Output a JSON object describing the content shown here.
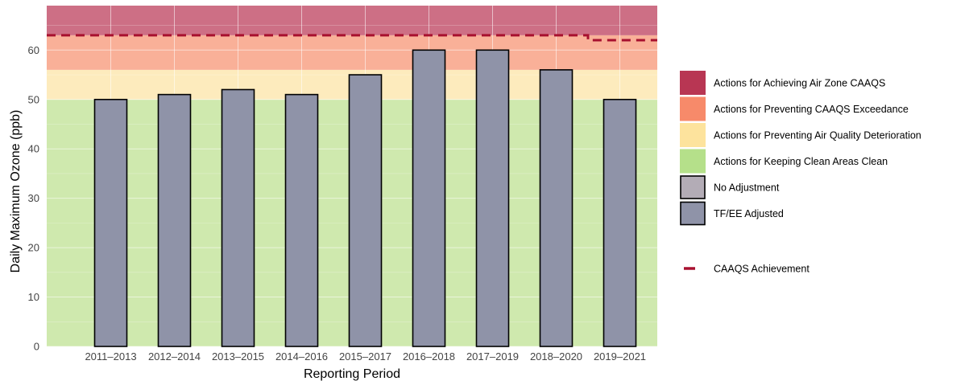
{
  "chart_data": {
    "type": "bar",
    "title": "",
    "xlabel": "Reporting Period",
    "ylabel": "Daily Maximum Ozone (ppb)",
    "ylim": [
      0,
      69
    ],
    "yticks": [
      0,
      10,
      20,
      30,
      40,
      50,
      60
    ],
    "grid": true,
    "categories": [
      "2011–2013",
      "2012–2014",
      "2013–2015",
      "2014–2016",
      "2015–2017",
      "2016–2018",
      "2017–2019",
      "2018–2020",
      "2019–2021"
    ],
    "series": [
      {
        "name": "TF/EE Adjusted",
        "color": "#8f93a8",
        "values": [
          50,
          51,
          52,
          51,
          55,
          60,
          60,
          56,
          50
        ]
      }
    ],
    "bands": [
      {
        "name": "Actions for Keeping Clean Areas Clean",
        "from": 0,
        "to": 50,
        "color": "#cfe9ae",
        "legend_color": "#b5e08a"
      },
      {
        "name": "Actions for Preventing Air Quality Deterioration",
        "from": 50,
        "to": 56,
        "color": "#fdebbd",
        "legend_color": "#fde39d"
      },
      {
        "name": "Actions for Preventing CAAQS Exceedance",
        "from": 56,
        "to": 63,
        "color": "#f9b098",
        "legend_color": "#f78a6a"
      },
      {
        "name": "Actions for Achieving Air Zone CAAQS",
        "from": 63,
        "to": 69,
        "color": "#cd6f85",
        "legend_color": "#b83653"
      }
    ],
    "achievement_line": {
      "name": "CAAQS Achievement",
      "color": "#a8102f",
      "segments": [
        {
          "from_category_index": 0,
          "to_category_index": 7,
          "value": 63
        },
        {
          "from_category_index": 8,
          "to_category_index": 8,
          "value": 62
        }
      ]
    },
    "legend": {
      "position": "right",
      "items": [
        {
          "label": "Actions for Achieving Air Zone CAAQS",
          "kind": "band",
          "color": "#b83653"
        },
        {
          "label": "Actions for Preventing CAAQS Exceedance",
          "kind": "band",
          "color": "#f78a6a"
        },
        {
          "label": "Actions for Preventing Air Quality Deterioration",
          "kind": "band",
          "color": "#fde39d"
        },
        {
          "label": "Actions for Keeping Clean Areas Clean",
          "kind": "band",
          "color": "#b5e08a"
        },
        {
          "label": "No Adjustment",
          "kind": "bar",
          "color": "#b3acb6"
        },
        {
          "label": "TF/EE Adjusted",
          "kind": "bar",
          "color": "#8f93a8"
        },
        {
          "label": "CAAQS Achievement",
          "kind": "line",
          "color": "#a8102f"
        }
      ]
    }
  }
}
